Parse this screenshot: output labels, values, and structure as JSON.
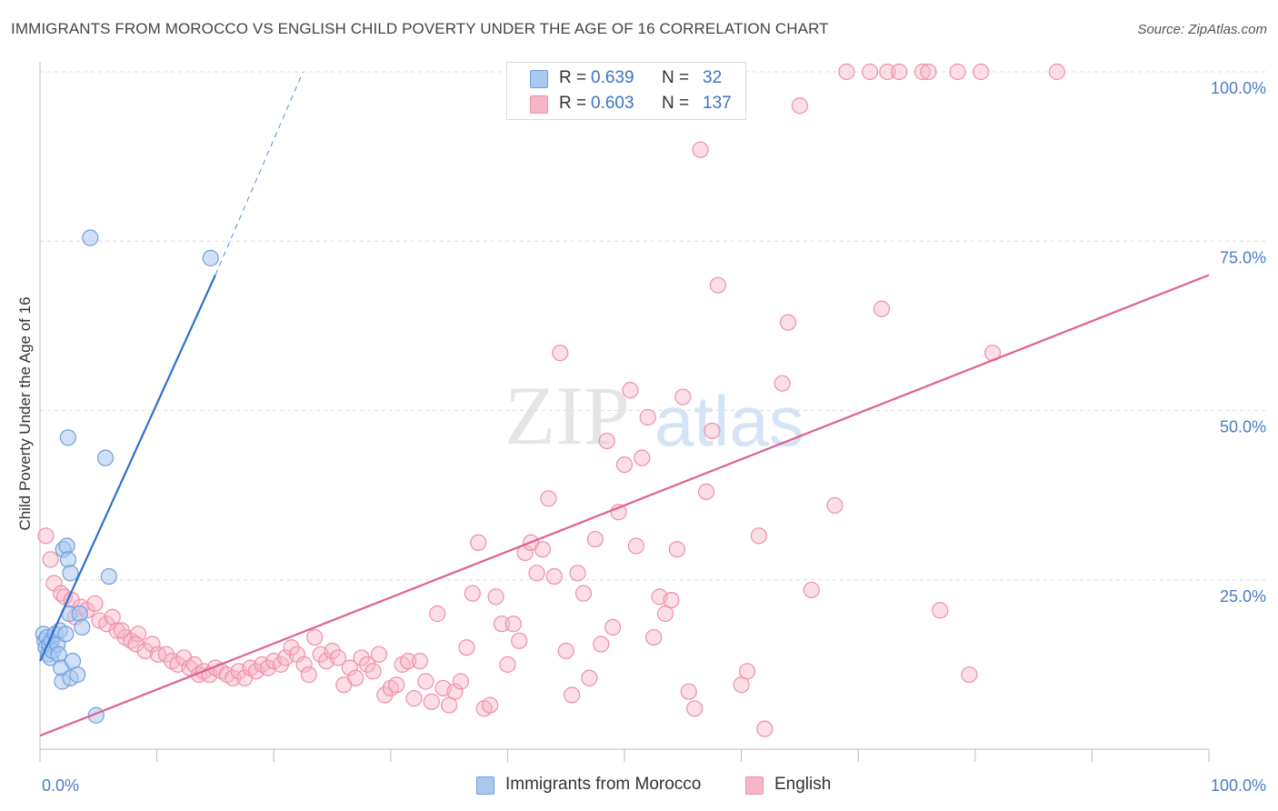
{
  "title": "IMMIGRANTS FROM MOROCCO VS ENGLISH CHILD POVERTY UNDER THE AGE OF 16 CORRELATION CHART",
  "source": "Source: ZipAtlas.com",
  "watermark": {
    "zip": "ZIP",
    "atlas": "atlas"
  },
  "stats": [
    {
      "r_label": "R =",
      "r_value": "0.639",
      "n_label": "N =",
      "n_value": "32"
    },
    {
      "r_label": "R =",
      "r_value": "0.603",
      "n_label": "N =",
      "n_value": "137"
    }
  ],
  "colors": {
    "morocco_fill": "#a9c8f0",
    "morocco_stroke": "#6f9fdc",
    "morocco_line": "#2e6fcf",
    "english_fill": "#f6b6c8",
    "english_stroke": "#ee8fab",
    "english_line": "#e0608c",
    "tick_label": "#4a7cc9",
    "grid": "#dcdcdc"
  },
  "chart_data": {
    "type": "scatter",
    "title": "IMMIGRANTS FROM MOROCCO VS ENGLISH CHILD POVERTY UNDER THE AGE OF 16 CORRELATION CHART",
    "xlabel": "",
    "ylabel": "Child Poverty Under the Age of 16",
    "xlim": [
      0,
      100
    ],
    "ylim": [
      0,
      100
    ],
    "x_tick_labels": [
      "0.0%",
      "100.0%"
    ],
    "y_ticks": [
      25,
      50,
      75,
      100
    ],
    "y_tick_labels": [
      "25.0%",
      "50.0%",
      "75.0%",
      "100.0%"
    ],
    "legend": [
      "Immigrants from Morocco",
      "English"
    ],
    "series": [
      {
        "name": "Immigrants from Morocco",
        "trend": {
          "x0": 0.0,
          "y0": 13.0,
          "x1": 15.0,
          "y1": 70.0,
          "dash_to_x": 22.5,
          "dash_to_y": 100.0
        },
        "points": [
          [
            0.3,
            17.0
          ],
          [
            0.4,
            16.0
          ],
          [
            0.5,
            15.0
          ],
          [
            0.6,
            16.5
          ],
          [
            0.7,
            14.0
          ],
          [
            0.8,
            15.5
          ],
          [
            0.9,
            13.5
          ],
          [
            1.0,
            16.0
          ],
          [
            1.1,
            14.5
          ],
          [
            1.3,
            17.0
          ],
          [
            1.5,
            15.5
          ],
          [
            1.6,
            14.0
          ],
          [
            1.8,
            12.0
          ],
          [
            1.7,
            17.5
          ],
          [
            1.9,
            10.0
          ],
          [
            2.0,
            29.5
          ],
          [
            2.3,
            30.0
          ],
          [
            2.2,
            17.0
          ],
          [
            2.4,
            28.0
          ],
          [
            2.5,
            20.0
          ],
          [
            2.6,
            26.0
          ],
          [
            2.4,
            46.0
          ],
          [
            2.6,
            10.5
          ],
          [
            2.8,
            13.0
          ],
          [
            3.2,
            11.0
          ],
          [
            3.4,
            20.0
          ],
          [
            3.6,
            18.0
          ],
          [
            4.3,
            75.5
          ],
          [
            4.8,
            5.0
          ],
          [
            5.6,
            43.0
          ],
          [
            5.9,
            25.5
          ],
          [
            14.6,
            72.5
          ]
        ]
      },
      {
        "name": "English",
        "trend": {
          "x0": 0.0,
          "y0": 2.0,
          "x1": 100.0,
          "y1": 70.0
        },
        "points": [
          [
            0.5,
            31.5
          ],
          [
            0.9,
            28.0
          ],
          [
            1.2,
            24.5
          ],
          [
            1.8,
            23.0
          ],
          [
            2.1,
            22.5
          ],
          [
            2.7,
            22.0
          ],
          [
            3.5,
            21.0
          ],
          [
            3.0,
            19.5
          ],
          [
            4.0,
            20.5
          ],
          [
            4.7,
            21.5
          ],
          [
            5.1,
            19.0
          ],
          [
            5.7,
            18.5
          ],
          [
            6.2,
            19.5
          ],
          [
            6.6,
            17.5
          ],
          [
            7.3,
            16.5
          ],
          [
            7.0,
            17.5
          ],
          [
            7.8,
            16.0
          ],
          [
            8.4,
            17.0
          ],
          [
            8.2,
            15.5
          ],
          [
            9.0,
            14.5
          ],
          [
            9.6,
            15.5
          ],
          [
            10.1,
            14.0
          ],
          [
            10.8,
            14.0
          ],
          [
            11.3,
            13.0
          ],
          [
            11.8,
            12.5
          ],
          [
            12.3,
            13.5
          ],
          [
            12.8,
            12.0
          ],
          [
            13.2,
            12.5
          ],
          [
            13.6,
            11.0
          ],
          [
            14.0,
            11.5
          ],
          [
            14.5,
            11.0
          ],
          [
            15.0,
            12.0
          ],
          [
            15.5,
            11.5
          ],
          [
            16.0,
            11.0
          ],
          [
            16.5,
            10.5
          ],
          [
            17.0,
            11.5
          ],
          [
            17.5,
            10.5
          ],
          [
            18.0,
            12.0
          ],
          [
            18.5,
            11.5
          ],
          [
            19.0,
            12.5
          ],
          [
            19.5,
            12.0
          ],
          [
            20.0,
            13.0
          ],
          [
            20.6,
            12.5
          ],
          [
            21.0,
            13.5
          ],
          [
            21.5,
            15.0
          ],
          [
            22.0,
            14.0
          ],
          [
            22.6,
            12.5
          ],
          [
            23.0,
            11.0
          ],
          [
            23.5,
            16.5
          ],
          [
            24.0,
            14.0
          ],
          [
            24.5,
            13.0
          ],
          [
            25.0,
            14.5
          ],
          [
            25.5,
            13.5
          ],
          [
            26.0,
            9.5
          ],
          [
            26.5,
            12.0
          ],
          [
            27.0,
            10.5
          ],
          [
            27.5,
            13.5
          ],
          [
            28.0,
            12.5
          ],
          [
            28.5,
            11.5
          ],
          [
            29.0,
            14.0
          ],
          [
            29.5,
            8.0
          ],
          [
            30.0,
            9.0
          ],
          [
            30.5,
            9.5
          ],
          [
            31.0,
            12.5
          ],
          [
            31.5,
            13.0
          ],
          [
            32.0,
            7.5
          ],
          [
            32.5,
            13.0
          ],
          [
            33.0,
            10.0
          ],
          [
            33.5,
            7.0
          ],
          [
            34.0,
            20.0
          ],
          [
            34.5,
            9.0
          ],
          [
            35.0,
            6.5
          ],
          [
            35.5,
            8.5
          ],
          [
            36.0,
            10.0
          ],
          [
            36.5,
            15.0
          ],
          [
            37.0,
            23.0
          ],
          [
            37.5,
            30.5
          ],
          [
            38.0,
            6.0
          ],
          [
            38.5,
            6.5
          ],
          [
            39.0,
            22.5
          ],
          [
            39.5,
            18.5
          ],
          [
            40.0,
            12.5
          ],
          [
            40.5,
            18.5
          ],
          [
            41.0,
            16.0
          ],
          [
            41.5,
            29.0
          ],
          [
            42.0,
            30.5
          ],
          [
            42.5,
            26.0
          ],
          [
            43.0,
            29.5
          ],
          [
            43.5,
            37.0
          ],
          [
            44.0,
            25.5
          ],
          [
            44.5,
            58.5
          ],
          [
            45.0,
            14.5
          ],
          [
            45.5,
            8.0
          ],
          [
            46.0,
            26.0
          ],
          [
            46.5,
            23.0
          ],
          [
            47.0,
            10.5
          ],
          [
            47.5,
            31.0
          ],
          [
            48.0,
            15.5
          ],
          [
            48.5,
            45.5
          ],
          [
            49.0,
            18.0
          ],
          [
            49.5,
            35.0
          ],
          [
            50.0,
            42.0
          ],
          [
            50.5,
            53.0
          ],
          [
            51.0,
            30.0
          ],
          [
            51.5,
            43.0
          ],
          [
            52.0,
            49.0
          ],
          [
            52.5,
            16.5
          ],
          [
            53.0,
            22.5
          ],
          [
            53.5,
            20.0
          ],
          [
            54.0,
            22.0
          ],
          [
            54.5,
            29.5
          ],
          [
            55.0,
            52.0
          ],
          [
            55.5,
            8.5
          ],
          [
            56.0,
            6.0
          ],
          [
            56.5,
            88.5
          ],
          [
            57.0,
            38.0
          ],
          [
            57.5,
            47.0
          ],
          [
            58.0,
            68.5
          ],
          [
            60.0,
            9.5
          ],
          [
            60.5,
            11.5
          ],
          [
            61.5,
            31.5
          ],
          [
            62.0,
            3.0
          ],
          [
            63.5,
            54.0
          ],
          [
            64.0,
            63.0
          ],
          [
            65.0,
            95.0
          ],
          [
            66.0,
            23.5
          ],
          [
            68.0,
            36.0
          ],
          [
            69.0,
            100.0
          ],
          [
            71.0,
            100.0
          ],
          [
            72.0,
            65.0
          ],
          [
            72.5,
            100.0
          ],
          [
            73.5,
            100.0
          ],
          [
            75.5,
            100.0
          ],
          [
            76.0,
            100.0
          ],
          [
            77.0,
            20.5
          ],
          [
            78.5,
            100.0
          ],
          [
            79.5,
            11.0
          ],
          [
            80.5,
            100.0
          ],
          [
            81.5,
            58.5
          ],
          [
            87.0,
            100.0
          ]
        ]
      }
    ]
  }
}
